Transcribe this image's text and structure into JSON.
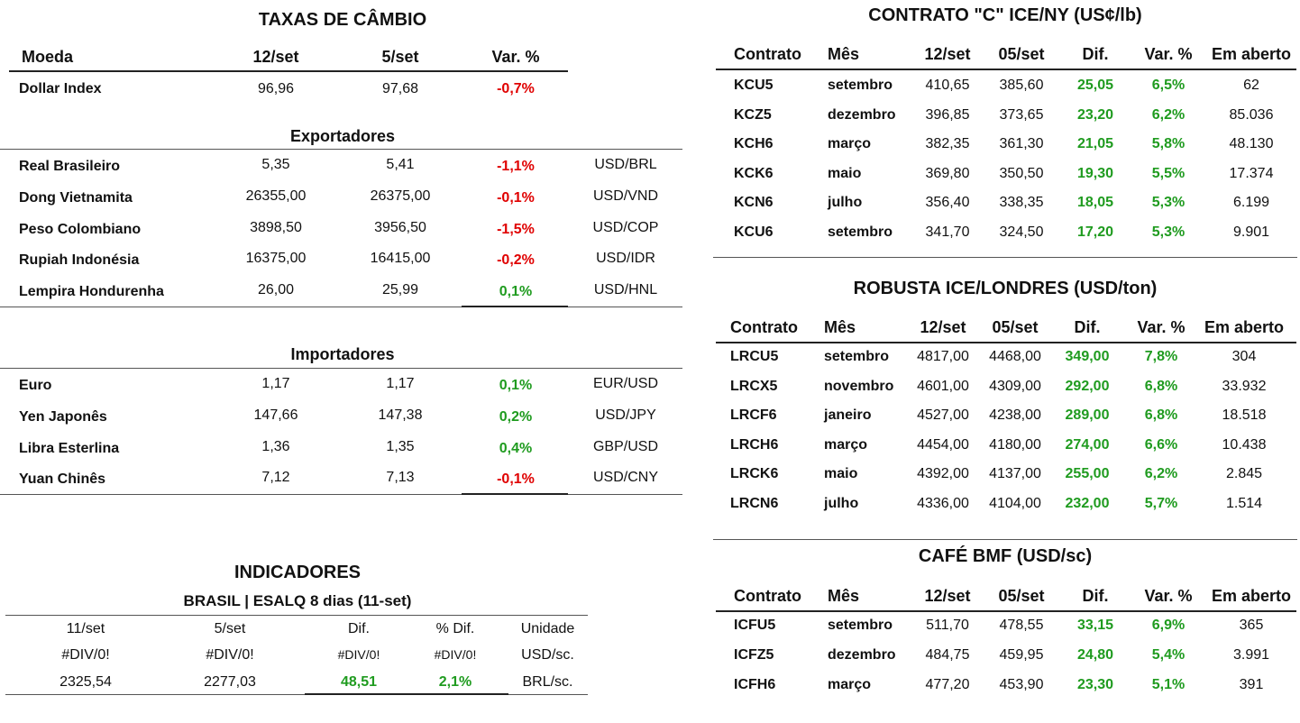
{
  "cambio": {
    "title": "TAXAS DE CÂMBIO",
    "headers": [
      "Moeda",
      "12/set",
      "5/set",
      "Var. %"
    ],
    "dollar_index": {
      "name": "Dollar Index",
      "v1": "96,96",
      "v2": "97,68",
      "var": "-0,7%",
      "dir": "neg"
    },
    "exportadores_title": "Exportadores",
    "exportadores": [
      {
        "name": "Real Brasileiro",
        "v1": "5,35",
        "v2": "5,41",
        "var": "-1,1%",
        "dir": "neg",
        "pair": "USD/BRL"
      },
      {
        "name": "Dong Vietnamita",
        "v1": "26355,00",
        "v2": "26375,00",
        "var": "-0,1%",
        "dir": "neg",
        "pair": "USD/VND"
      },
      {
        "name": "Peso Colombiano",
        "v1": "3898,50",
        "v2": "3956,50",
        "var": "-1,5%",
        "dir": "neg",
        "pair": "USD/COP"
      },
      {
        "name": "Rupiah Indonésia",
        "v1": "16375,00",
        "v2": "16415,00",
        "var": "-0,2%",
        "dir": "neg",
        "pair": "USD/IDR"
      },
      {
        "name": "Lempira Hondurenha",
        "v1": "26,00",
        "v2": "25,99",
        "var": "0,1%",
        "dir": "pos",
        "pair": "USD/HNL"
      }
    ],
    "importadores_title": "Importadores",
    "importadores": [
      {
        "name": "Euro",
        "v1": "1,17",
        "v2": "1,17",
        "var": "0,1%",
        "dir": "pos",
        "pair": "EUR/USD"
      },
      {
        "name": "Yen Japonês",
        "v1": "147,66",
        "v2": "147,38",
        "var": "0,2%",
        "dir": "pos",
        "pair": "USD/JPY"
      },
      {
        "name": "Libra Esterlina",
        "v1": "1,36",
        "v2": "1,35",
        "var": "0,4%",
        "dir": "pos",
        "pair": "GBP/USD"
      },
      {
        "name": "Yuan Chinês",
        "v1": "7,12",
        "v2": "7,13",
        "var": "-0,1%",
        "dir": "neg",
        "pair": "USD/CNY"
      }
    ]
  },
  "indicadores": {
    "title": "INDICADORES",
    "subtitle": "BRASIL | ESALQ 8 dias (11-set)",
    "headers": [
      "11/set",
      "5/set",
      "Dif.",
      "% Dif.",
      "Unidade"
    ],
    "rows": [
      {
        "v1": "#DIV/0!",
        "v2": "#DIV/0!",
        "dif": "#DIV/0!",
        "pct": "#DIV/0!",
        "unit": "USD/sc.",
        "dir": ""
      },
      {
        "v1": "2325,54",
        "v2": "2277,03",
        "dif": "48,51",
        "pct": "2,1%",
        "unit": "BRL/sc.",
        "dir": "pos"
      }
    ]
  },
  "arabica": {
    "title": "CONTRATO \"C\" ICE/NY (US¢/lb)",
    "headers": [
      "Contrato",
      "Mês",
      "12/set",
      "05/set",
      "Dif.",
      "Var. %",
      "Em aberto"
    ],
    "rows": [
      {
        "c": "KCU5",
        "m": "setembro",
        "v1": "410,65",
        "v2": "385,60",
        "dif": "25,05",
        "var": "6,5%",
        "oi": "62"
      },
      {
        "c": "KCZ5",
        "m": "dezembro",
        "v1": "396,85",
        "v2": "373,65",
        "dif": "23,20",
        "var": "6,2%",
        "oi": "85.036"
      },
      {
        "c": "KCH6",
        "m": "março",
        "v1": "382,35",
        "v2": "361,30",
        "dif": "21,05",
        "var": "5,8%",
        "oi": "48.130"
      },
      {
        "c": "KCK6",
        "m": "maio",
        "v1": "369,80",
        "v2": "350,50",
        "dif": "19,30",
        "var": "5,5%",
        "oi": "17.374"
      },
      {
        "c": "KCN6",
        "m": "julho",
        "v1": "356,40",
        "v2": "338,35",
        "dif": "18,05",
        "var": "5,3%",
        "oi": "6.199"
      },
      {
        "c": "KCU6",
        "m": "setembro",
        "v1": "341,70",
        "v2": "324,50",
        "dif": "17,20",
        "var": "5,3%",
        "oi": "9.901"
      }
    ]
  },
  "robusta": {
    "title": "ROBUSTA ICE/LONDRES (USD/ton)",
    "headers": [
      "Contrato",
      "Mês",
      "12/set",
      "05/set",
      "Dif.",
      "Var. %",
      "Em aberto"
    ],
    "rows": [
      {
        "c": "LRCU5",
        "m": "setembro",
        "v1": "4817,00",
        "v2": "4468,00",
        "dif": "349,00",
        "var": "7,8%",
        "oi": "304"
      },
      {
        "c": "LRCX5",
        "m": "novembro",
        "v1": "4601,00",
        "v2": "4309,00",
        "dif": "292,00",
        "var": "6,8%",
        "oi": "33.932"
      },
      {
        "c": "LRCF6",
        "m": "janeiro",
        "v1": "4527,00",
        "v2": "4238,00",
        "dif": "289,00",
        "var": "6,8%",
        "oi": "18.518"
      },
      {
        "c": "LRCH6",
        "m": "março",
        "v1": "4454,00",
        "v2": "4180,00",
        "dif": "274,00",
        "var": "6,6%",
        "oi": "10.438"
      },
      {
        "c": "LRCK6",
        "m": "maio",
        "v1": "4392,00",
        "v2": "4137,00",
        "dif": "255,00",
        "var": "6,2%",
        "oi": "2.845"
      },
      {
        "c": "LRCN6",
        "m": "julho",
        "v1": "4336,00",
        "v2": "4104,00",
        "dif": "232,00",
        "var": "5,7%",
        "oi": "1.514"
      }
    ]
  },
  "bmf": {
    "title": "CAFÉ BMF (USD/sc)",
    "headers": [
      "Contrato",
      "Mês",
      "12/set",
      "05/set",
      "Dif.",
      "Var. %",
      "Em aberto"
    ],
    "rows": [
      {
        "c": "ICFU5",
        "m": "setembro",
        "v1": "511,70",
        "v2": "478,55",
        "dif": "33,15",
        "var": "6,9%",
        "oi": "365"
      },
      {
        "c": "ICFZ5",
        "m": "dezembro",
        "v1": "484,75",
        "v2": "459,95",
        "dif": "24,80",
        "var": "5,4%",
        "oi": "3.991"
      },
      {
        "c": "ICFH6",
        "m": "março",
        "v1": "477,20",
        "v2": "453,90",
        "dif": "23,30",
        "var": "5,1%",
        "oi": "391"
      }
    ]
  }
}
